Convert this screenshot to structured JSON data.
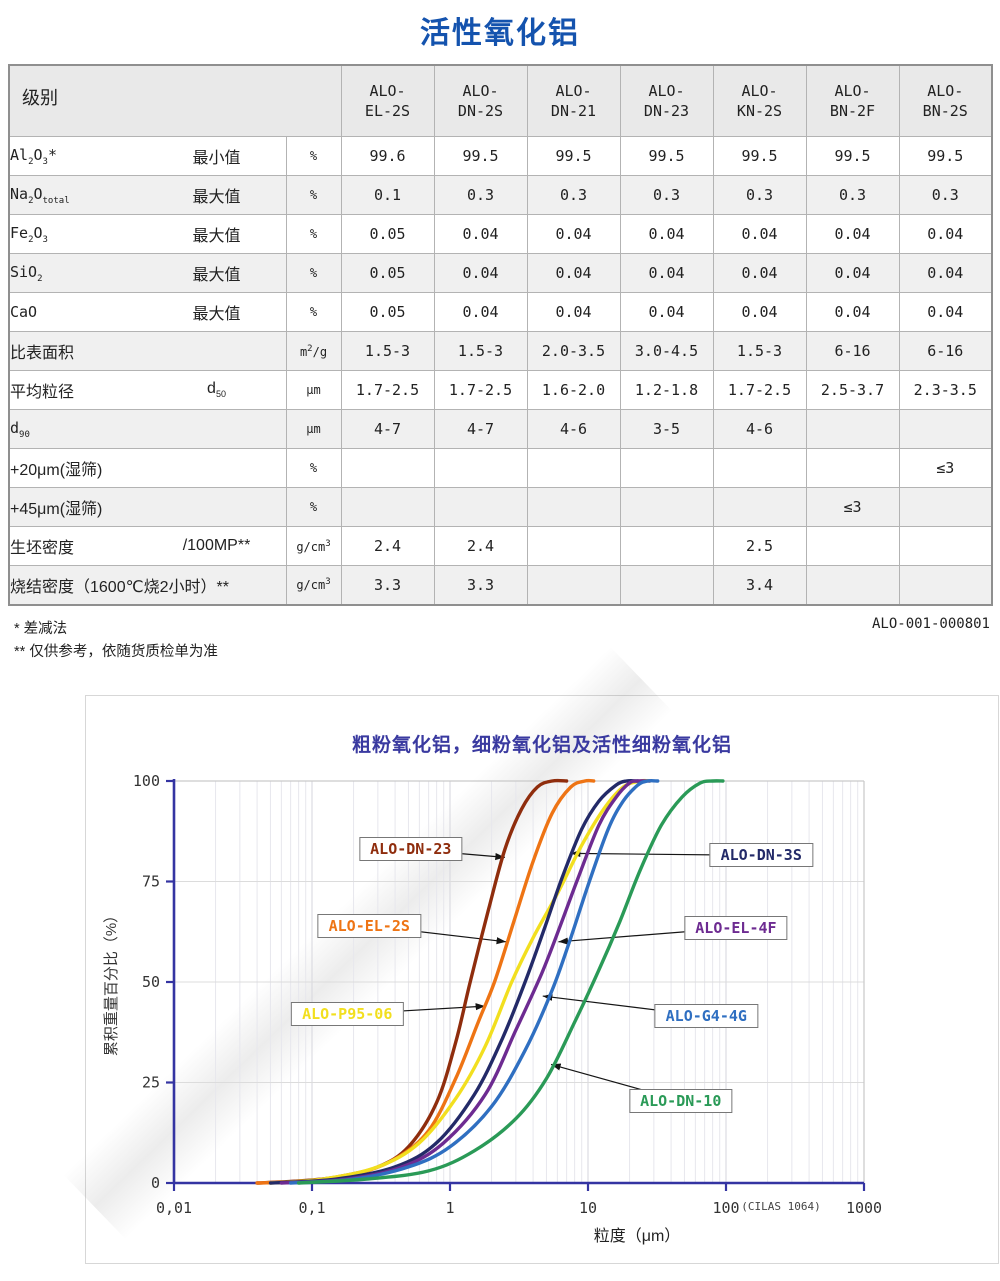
{
  "page": {
    "title": "活性氧化铝",
    "doc_code": "ALO-001-000801",
    "footnote_1": "* 差减法",
    "footnote_2": "** 仅供参考，依随货质检单为准"
  },
  "table": {
    "corner_label": "级别",
    "products": [
      "ALO-EL-2S",
      "ALO-DN-2S",
      "ALO-DN-21",
      "ALO-DN-23",
      "ALO-KN-2S",
      "ALO-BN-2F",
      "ALO-BN-2S"
    ],
    "rows": [
      {
        "name": "Al~2~O~3~*",
        "qualifier": "最小值",
        "unit": "%",
        "values": [
          "99.6",
          "99.5",
          "99.5",
          "99.5",
          "99.5",
          "99.5",
          "99.5"
        ]
      },
      {
        "name": "Na~2~O~total~",
        "qualifier": "最大值",
        "unit": "%",
        "values": [
          "0.1",
          "0.3",
          "0.3",
          "0.3",
          "0.3",
          "0.3",
          "0.3"
        ]
      },
      {
        "name": "Fe~2~O~3~",
        "qualifier": "最大值",
        "unit": "%",
        "values": [
          "0.05",
          "0.04",
          "0.04",
          "0.04",
          "0.04",
          "0.04",
          "0.04"
        ]
      },
      {
        "name": "SiO~2~",
        "qualifier": "最大值",
        "unit": "%",
        "values": [
          "0.05",
          "0.04",
          "0.04",
          "0.04",
          "0.04",
          "0.04",
          "0.04"
        ]
      },
      {
        "name": "CaO",
        "qualifier": "最大值",
        "unit": "%",
        "values": [
          "0.05",
          "0.04",
          "0.04",
          "0.04",
          "0.04",
          "0.04",
          "0.04"
        ]
      },
      {
        "name": "比表面积",
        "qualifier": "",
        "unit": "m^2^/g",
        "values": [
          "1.5-3",
          "1.5-3",
          "2.0-3.5",
          "3.0-4.5",
          "1.5-3",
          "6-16",
          "6-16"
        ]
      },
      {
        "name": "平均粒径",
        "qualifier": "d~50~",
        "unit": "μm",
        "values": [
          "1.7-2.5",
          "1.7-2.5",
          "1.6-2.0",
          "1.2-1.8",
          "1.7-2.5",
          "2.5-3.7",
          "2.3-3.5"
        ]
      },
      {
        "name": "d~90~",
        "qualifier": "",
        "unit": "μm",
        "values": [
          "4-7",
          "4-7",
          "4-6",
          "3-5",
          "4-6",
          "",
          ""
        ]
      },
      {
        "name": "+20μm(湿筛)",
        "qualifier": "",
        "unit": "%",
        "values": [
          "",
          "",
          "",
          "",
          "",
          "",
          "≤3"
        ]
      },
      {
        "name": "+45μm(湿筛)",
        "qualifier": "",
        "unit": "%",
        "values": [
          "",
          "",
          "",
          "",
          "",
          "≤3",
          ""
        ]
      },
      {
        "name": "生坯密度",
        "qualifier": "/100MP**",
        "unit": "g/cm^3^",
        "values": [
          "2.4",
          "2.4",
          "",
          "",
          "2.5",
          "",
          ""
        ]
      },
      {
        "name": "烧结密度（1600℃烧2小时）**",
        "qualifier": "",
        "unit": "g/cm^3^",
        "values": [
          "3.3",
          "3.3",
          "",
          "",
          "3.4",
          "",
          ""
        ]
      }
    ]
  },
  "chart_data": {
    "type": "line",
    "title": "粗粉氧化铝，细粉氧化铝及活性细粉氧化铝",
    "xlabel": "粒度（μm）",
    "ylabel": "累积重量百分比（%）",
    "instrument_note": "(CILAS 1064)",
    "x_scale": "log",
    "xlim": [
      0.01,
      1000
    ],
    "ylim": [
      0,
      100
    ],
    "x_tick_labels": [
      "0,01",
      "0,1",
      "1",
      "10",
      "100",
      "1000"
    ],
    "x_tick_values": [
      0.01,
      0.1,
      1,
      10,
      100,
      1000
    ],
    "y_ticks": [
      0,
      25,
      50,
      75,
      100
    ],
    "grid": true,
    "axis_color": "#3434a2",
    "series": [
      {
        "name": "ALO-DN-23",
        "color": "#8f2d0d",
        "label_pos": [
          0.52,
          83
        ],
        "arrow_tip": [
          2.5,
          81
        ],
        "points": [
          [
            0.04,
            0
          ],
          [
            0.08,
            0.5
          ],
          [
            0.15,
            1.5
          ],
          [
            0.3,
            4
          ],
          [
            0.5,
            9
          ],
          [
            0.8,
            20
          ],
          [
            1.1,
            35
          ],
          [
            1.4,
            50
          ],
          [
            1.9,
            68
          ],
          [
            2.5,
            83
          ],
          [
            3.3,
            93
          ],
          [
            4.3,
            98.5
          ],
          [
            5.5,
            100
          ],
          [
            7,
            100
          ]
        ]
      },
      {
        "name": "ALO-EL-2S",
        "color": "#ee7414",
        "label_pos": [
          0.26,
          64
        ],
        "arrow_tip": [
          2.55,
          60
        ],
        "points": [
          [
            0.04,
            0
          ],
          [
            0.1,
            0.5
          ],
          [
            0.2,
            2
          ],
          [
            0.4,
            6
          ],
          [
            0.7,
            13
          ],
          [
            1.1,
            26
          ],
          [
            1.6,
            40
          ],
          [
            2.1,
            50
          ],
          [
            2.9,
            65
          ],
          [
            4,
            80
          ],
          [
            5.5,
            92
          ],
          [
            7.5,
            98.5
          ],
          [
            9.5,
            100
          ],
          [
            11,
            100
          ]
        ]
      },
      {
        "name": "ALO-P95-06",
        "color": "#f2df1f",
        "label_pos": [
          0.18,
          42
        ],
        "arrow_tip": [
          1.8,
          44
        ],
        "points": [
          [
            0.05,
            0
          ],
          [
            0.12,
            1
          ],
          [
            0.3,
            4
          ],
          [
            0.6,
            10
          ],
          [
            1.1,
            21
          ],
          [
            1.8,
            34
          ],
          [
            2.8,
            50
          ],
          [
            4,
            61
          ],
          [
            6,
            72
          ],
          [
            9,
            84
          ],
          [
            13,
            93
          ],
          [
            18,
            98.5
          ],
          [
            24,
            100
          ],
          [
            28,
            100
          ]
        ]
      },
      {
        "name": "ALO-DN-3S",
        "color": "#232a68",
        "label_pos": [
          180,
          81.5
        ],
        "arrow_tip": [
          7.5,
          82
        ],
        "points": [
          [
            0.05,
            0
          ],
          [
            0.15,
            1
          ],
          [
            0.4,
            4
          ],
          [
            0.8,
            10
          ],
          [
            1.5,
            22
          ],
          [
            2.4,
            36
          ],
          [
            3.5,
            50
          ],
          [
            4.8,
            63
          ],
          [
            6.5,
            76
          ],
          [
            9,
            88
          ],
          [
            12,
            95
          ],
          [
            16,
            99
          ],
          [
            19,
            100
          ],
          [
            23,
            100
          ]
        ]
      },
      {
        "name": "ALO-EL-4F",
        "color": "#6d2b91",
        "label_pos": [
          118,
          63.5
        ],
        "arrow_tip": [
          6.1,
          60
        ],
        "points": [
          [
            0.06,
            0
          ],
          [
            0.18,
            1
          ],
          [
            0.45,
            4
          ],
          [
            0.9,
            10
          ],
          [
            1.8,
            22
          ],
          [
            3,
            38
          ],
          [
            4.6,
            52
          ],
          [
            6.3,
            64
          ],
          [
            8.5,
            76
          ],
          [
            12,
            89
          ],
          [
            16,
            96
          ],
          [
            20,
            99.5
          ],
          [
            23,
            100
          ],
          [
            28,
            100
          ]
        ]
      },
      {
        "name": "ALO-G4-4G",
        "color": "#2f6fc1",
        "label_pos": [
          72,
          41.5
        ],
        "arrow_tip": [
          4.7,
          46.5
        ],
        "points": [
          [
            0.07,
            0
          ],
          [
            0.2,
            1
          ],
          [
            0.5,
            4
          ],
          [
            1,
            9
          ],
          [
            2,
            19
          ],
          [
            3.5,
            33
          ],
          [
            5.5,
            48
          ],
          [
            7.5,
            61
          ],
          [
            10,
            74
          ],
          [
            14,
            88
          ],
          [
            18,
            95
          ],
          [
            23,
            99
          ],
          [
            27,
            100
          ],
          [
            32,
            100
          ]
        ]
      },
      {
        "name": "ALO-DN-10",
        "color": "#2a9a57",
        "label_pos": [
          47,
          20.5
        ],
        "arrow_tip": [
          5.4,
          29.5
        ],
        "points": [
          [
            0.08,
            0
          ],
          [
            0.25,
            1
          ],
          [
            0.7,
            3
          ],
          [
            1.5,
            8
          ],
          [
            3,
            16
          ],
          [
            5,
            26
          ],
          [
            8,
            40
          ],
          [
            12,
            53
          ],
          [
            17,
            65
          ],
          [
            24,
            78
          ],
          [
            34,
            89
          ],
          [
            48,
            96
          ],
          [
            65,
            99.5
          ],
          [
            80,
            100
          ],
          [
            95,
            100
          ]
        ]
      }
    ]
  }
}
